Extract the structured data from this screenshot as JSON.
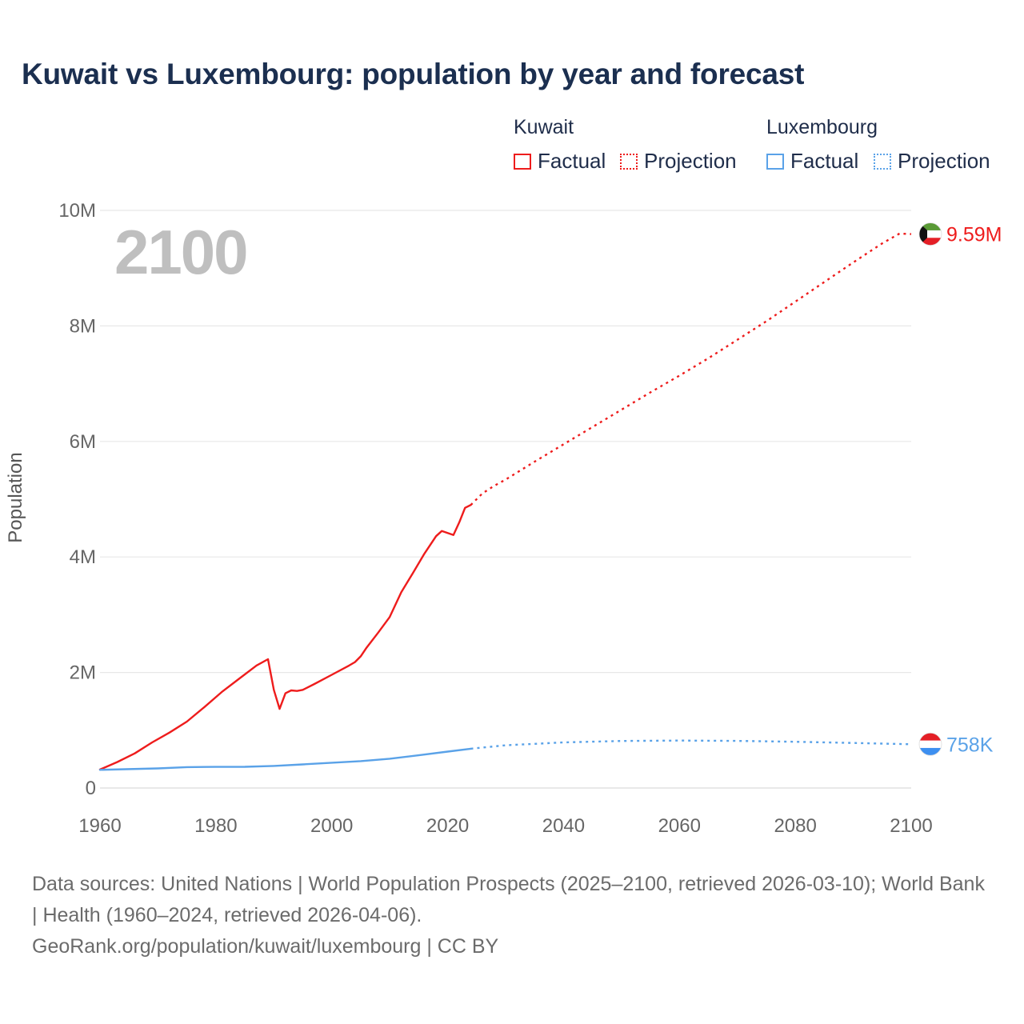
{
  "title": "Kuwait vs Luxembourg: population by year and forecast",
  "current_year": "2100",
  "legend": {
    "kuwait": {
      "name": "Kuwait",
      "factual": "Factual",
      "projection": "Projection",
      "color": "#ee1c1c"
    },
    "luxembourg": {
      "name": "Luxembourg",
      "factual": "Factual",
      "projection": "Projection",
      "color": "#5aa2e8"
    }
  },
  "end_labels": {
    "kuwait": "9.59M",
    "luxembourg": "758K"
  },
  "flags": {
    "kuwait": "kuwait-flag-icon",
    "luxembourg": "luxembourg-flag-icon"
  },
  "source": {
    "line1": "Data sources: United Nations | World Population Prospects (2025–2100, retrieved 2026-03-10); World Bank | Health (1960–2024, retrieved 2026-04-06).",
    "line2": "GeoRank.org/population/kuwait/luxembourg | CC BY"
  },
  "chart_data": {
    "type": "line",
    "title": "Kuwait vs Luxembourg: population by year and forecast",
    "xlabel": "",
    "ylabel": "Population",
    "xlim": [
      1960,
      2100
    ],
    "ylim": [
      0,
      10000000
    ],
    "x_ticks": [
      1960,
      1980,
      2000,
      2020,
      2040,
      2060,
      2080,
      2100
    ],
    "x_tick_labels": [
      "1960",
      "1980",
      "2000",
      "2020",
      "2040",
      "2060",
      "2080",
      "2100"
    ],
    "y_ticks": [
      0,
      2000000,
      4000000,
      6000000,
      8000000,
      10000000
    ],
    "y_tick_labels": [
      "0",
      "2M",
      "4M",
      "6M",
      "8M",
      "10M"
    ],
    "grid": true,
    "series": [
      {
        "name": "Kuwait",
        "segment": "Factual",
        "color": "#ee1c1c",
        "dash": false,
        "x": [
          1960,
          1963,
          1966,
          1969,
          1972,
          1975,
          1978,
          1981,
          1984,
          1987,
          1989,
          1990,
          1991,
          1992,
          1993,
          1994,
          1995,
          1997,
          2000,
          2003,
          2004,
          2005,
          2006,
          2008,
          2010,
          2012,
          2014,
          2016,
          2018,
          2019,
          2021,
          2022,
          2023,
          2024
        ],
        "y": [
          320000,
          450000,
          600000,
          790000,
          960000,
          1150000,
          1400000,
          1660000,
          1890000,
          2120000,
          2230000,
          1700000,
          1370000,
          1640000,
          1690000,
          1680000,
          1700000,
          1800000,
          1960000,
          2120000,
          2180000,
          2280000,
          2430000,
          2690000,
          2960000,
          3390000,
          3720000,
          4060000,
          4360000,
          4450000,
          4380000,
          4600000,
          4850000,
          4900000
        ]
      },
      {
        "name": "Kuwait",
        "segment": "Projection",
        "color": "#ee1c1c",
        "dash": true,
        "x": [
          2024,
          2026,
          2028,
          2030,
          2035,
          2040,
          2045,
          2050,
          2055,
          2060,
          2065,
          2070,
          2075,
          2080,
          2085,
          2090,
          2095,
          2098,
          2100
        ],
        "y": [
          4900000,
          5100000,
          5230000,
          5340000,
          5650000,
          5950000,
          6250000,
          6550000,
          6850000,
          7140000,
          7440000,
          7760000,
          8080000,
          8420000,
          8760000,
          9100000,
          9430000,
          9600000,
          9590000
        ]
      },
      {
        "name": "Luxembourg",
        "segment": "Factual",
        "color": "#5aa2e8",
        "dash": false,
        "x": [
          1960,
          1970,
          1975,
          1980,
          1985,
          1990,
          1995,
          2000,
          2005,
          2010,
          2015,
          2020,
          2024
        ],
        "y": [
          315000,
          340000,
          362000,
          365000,
          367000,
          382000,
          408000,
          438000,
          466000,
          507000,
          567000,
          630000,
          680000
        ],
        "data_labels": []
      },
      {
        "name": "Luxembourg",
        "segment": "Projection",
        "color": "#5aa2e8",
        "dash": true,
        "x": [
          2024,
          2030,
          2040,
          2050,
          2060,
          2070,
          2080,
          2090,
          2100
        ],
        "y": [
          680000,
          740000,
          790000,
          815000,
          822000,
          816000,
          800000,
          780000,
          758000
        ]
      }
    ],
    "end_labels": [
      {
        "name": "Kuwait",
        "x": 2100,
        "y": 9590000,
        "text": "9.59M"
      },
      {
        "name": "Luxembourg",
        "x": 2100,
        "y": 758000,
        "text": "758K"
      }
    ]
  }
}
